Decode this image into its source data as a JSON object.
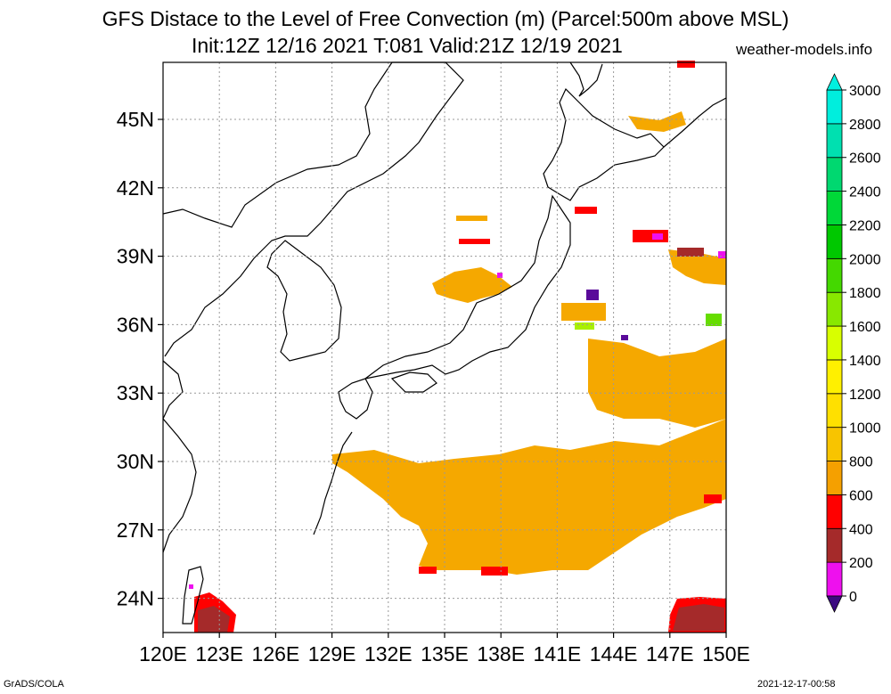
{
  "title": {
    "line1": "GFS Distace to the Level of Free Convection (m) (Parcel:500m above MSL)",
    "line2": "Init:12Z 12/16 2021 T:081 Valid:21Z 12/19 2021",
    "site": "weather-models.info"
  },
  "footer": {
    "left": "GrADS/COLA",
    "right": "2021-12-17-00:58"
  },
  "map": {
    "lon_range": [
      120,
      150
    ],
    "lat_range": [
      22.5,
      47.5
    ],
    "lon_ticks": [
      "120E",
      "123E",
      "126E",
      "129E",
      "132E",
      "135E",
      "138E",
      "141E",
      "144E",
      "147E",
      "150E"
    ],
    "lon_values": [
      120,
      123,
      126,
      129,
      132,
      135,
      138,
      141,
      144,
      147,
      150
    ],
    "lat_ticks": [
      "24N",
      "27N",
      "30N",
      "33N",
      "36N",
      "39N",
      "42N",
      "45N"
    ],
    "lat_values": [
      24,
      27,
      30,
      33,
      36,
      39,
      42,
      45
    ],
    "grid": true
  },
  "colorbar": {
    "labels": [
      "0",
      "200",
      "400",
      "600",
      "800",
      "1000",
      "1200",
      "1400",
      "1600",
      "1800",
      "2000",
      "2200",
      "2400",
      "2600",
      "2800",
      "3000"
    ],
    "colors": [
      "#3b0a80",
      "#ee10ee",
      "#a52a2a",
      "#ff0000",
      "#f5a000",
      "#f8c400",
      "#ffe000",
      "#fff000",
      "#d8ff00",
      "#88e800",
      "#44d800",
      "#00c800",
      "#00d838",
      "#00d870",
      "#00e0b0",
      "#00eedd"
    ],
    "extend_low": "#3b0a80",
    "extend_high": "#00f0e0"
  },
  "fields": {
    "orange": "#f5a800",
    "red": "#ff0000",
    "brown": "#a52a2a",
    "magenta": "#ee10ee",
    "purple": "#5a0a9a",
    "green": "#66dd00"
  }
}
